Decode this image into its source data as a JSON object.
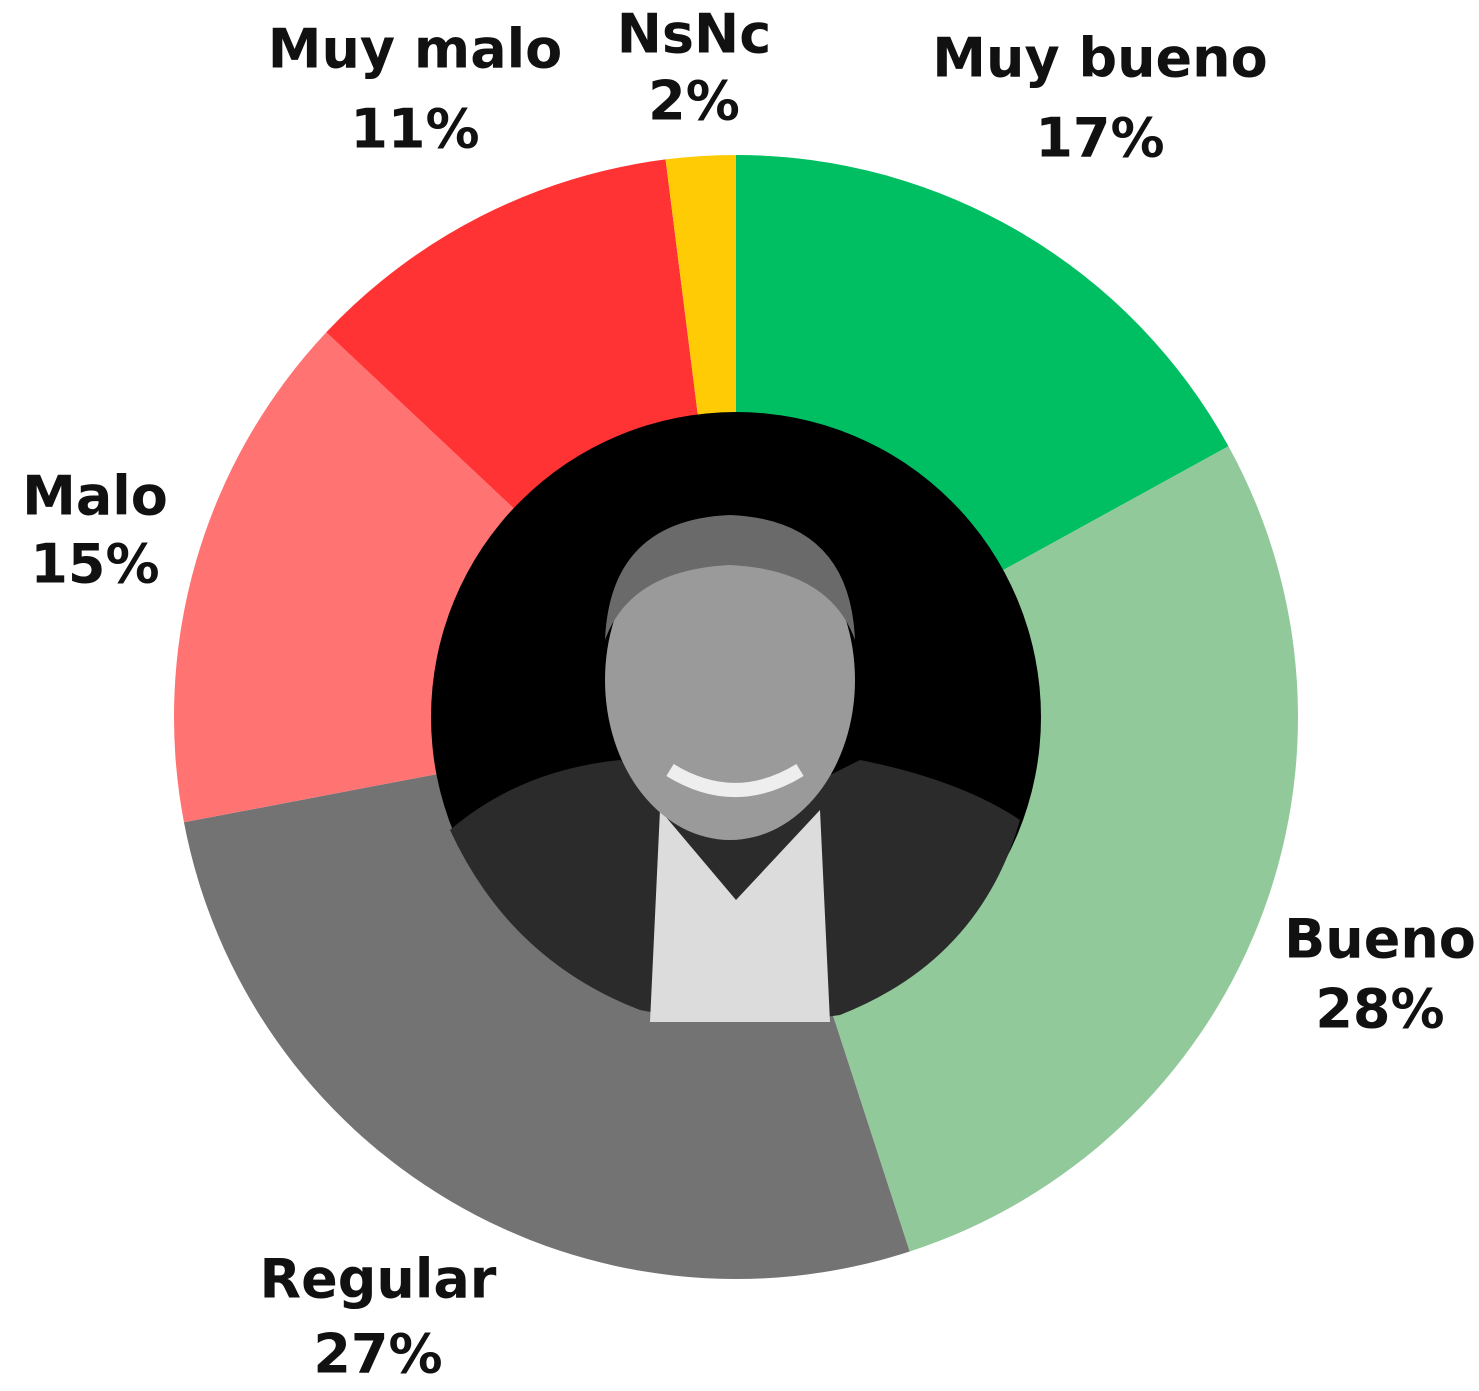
{
  "chart_data": {
    "type": "donut",
    "categories": [
      "Muy bueno",
      "Bueno",
      "Regular",
      "Malo",
      "Muy malo",
      "NsNc"
    ],
    "values": [
      17,
      28,
      27,
      15,
      11,
      2
    ],
    "value_labels": [
      "17%",
      "28%",
      "27%",
      "15%",
      "11%",
      "2%"
    ],
    "colors": [
      "#00bf63",
      "#92c99b",
      "#737373",
      "#ff7373",
      "#ff3333",
      "#ffcb05"
    ]
  }
}
